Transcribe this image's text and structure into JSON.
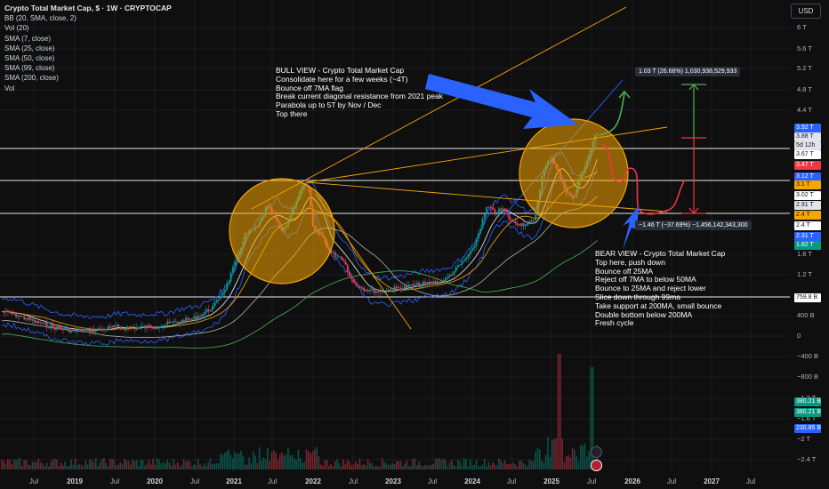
{
  "header": {
    "symbol_title": "Crypto Total Market Cap, $ · 1W · CRYPTOCAP",
    "indicators": [
      "BB (20, SMA, close, 2)",
      "Vol (20)",
      "SMA (7, close)",
      "SMA (25, close)",
      "SMA (50, close)",
      "SMA (99, close)",
      "SMA (200, close)",
      "Vol"
    ],
    "currency": "USD"
  },
  "annotations": {
    "bull": [
      "BULL VIEW - Crypto Total Market Cap",
      "Consolidate here for a few weeks (~4T)",
      "Bounce off 7MA flag",
      "Break current diagonal resistance from 2021 peak",
      "Parabola up to 5T by Nov / Dec",
      "Top there"
    ],
    "bear": [
      "BEAR VIEW - Crypto Total Market Cap",
      "Top here, push down",
      "Bounce off 25MA",
      "Reject off 7MA to below 50MA",
      "Bounce to 25MA and reject lower",
      "Slice down through 99ma",
      "Take support at 200MA, small bounce",
      "Double bottom below 200MA",
      "Fresh cycle"
    ],
    "measure_up": "1.03 T (26.66%) 1,030,938,529,933",
    "measure_down": "−1.46 T (−37.69%) −1,456,142,343,300"
  },
  "colors": {
    "background": "#0f0f10",
    "up": "#089981",
    "down": "#f23645",
    "bb": "#2962ff",
    "sma7": "#2962ff",
    "sma25": "#f0f0f0",
    "sma50": "#f7a600",
    "sma99": "#b0b0b0",
    "sma200": "#4caf50",
    "trendline": "#f7a600",
    "arrow": "#2962ff",
    "bull_path": "#4caf50",
    "bear_path": "#f23645",
    "circle": "#f7a600"
  },
  "chart_data": {
    "type": "candlestick",
    "timeframe": "1W",
    "y_axis_labels": [
      "6 T",
      "5.6 T",
      "5.2 T",
      "4.8 T",
      "4.4 T",
      "1.6 T",
      "1.2 T",
      "400 B",
      "0",
      "−400 B",
      "−800 B",
      "−1.2 T",
      "−1.6 T",
      "−2 T",
      "−2.4 T"
    ],
    "x_axis_labels": [
      {
        "label": "Jul",
        "year": false
      },
      {
        "label": "2019",
        "year": true
      },
      {
        "label": "Jul",
        "year": false
      },
      {
        "label": "2020",
        "year": true
      },
      {
        "label": "Jul",
        "year": false
      },
      {
        "label": "2021",
        "year": true
      },
      {
        "label": "Jul",
        "year": false
      },
      {
        "label": "2022",
        "year": true
      },
      {
        "label": "Jul",
        "year": false
      },
      {
        "label": "2023",
        "year": true
      },
      {
        "label": "Jul",
        "year": false
      },
      {
        "label": "2024",
        "year": true
      },
      {
        "label": "Jul",
        "year": false
      },
      {
        "label": "2025",
        "year": true
      },
      {
        "label": "Jul",
        "year": false
      },
      {
        "label": "2026",
        "year": true
      },
      {
        "label": "Jul",
        "year": false
      },
      {
        "label": "2027",
        "year": true
      },
      {
        "label": "Jul",
        "year": false
      }
    ],
    "price_scale_labels": [
      {
        "text": "3.92 T",
        "bg": "#2962ff",
        "fg": "#ffffff"
      },
      {
        "text": "3.88 T",
        "bg": "#e0e3eb",
        "fg": "#131722"
      },
      {
        "text": "5d 12h",
        "bg": "#e0e3eb",
        "fg": "#131722"
      },
      {
        "text": "3.67 T",
        "bg": "#ffffff",
        "fg": "#131722"
      },
      {
        "text": "3.47 T",
        "bg": "#f23645",
        "fg": "#ffffff"
      },
      {
        "text": "3.12 T",
        "bg": "#2962ff",
        "fg": "#ffffff"
      },
      {
        "text": "3.1 T",
        "bg": "#f7a600",
        "fg": "#131722"
      },
      {
        "text": "3.02 T",
        "bg": "#ffffff",
        "fg": "#131722"
      },
      {
        "text": "2.91 T",
        "bg": "#e0e3eb",
        "fg": "#131722"
      },
      {
        "text": "2.4 T",
        "bg": "#f7a600",
        "fg": "#131722"
      },
      {
        "text": "2.4 T",
        "bg": "#ffffff",
        "fg": "#131722"
      },
      {
        "text": "2.31 T",
        "bg": "#2962ff",
        "fg": "#ffffff"
      },
      {
        "text": "1.82 T",
        "bg": "#089981",
        "fg": "#ffffff"
      },
      {
        "text": "759.8 B",
        "bg": "#ffffff",
        "fg": "#131722"
      },
      {
        "text": "380.21 B",
        "bg": "#089981",
        "fg": "#ffffff"
      },
      {
        "text": "380.21 B",
        "bg": "#089981",
        "fg": "#ffffff"
      },
      {
        "text": "230.85 B",
        "bg": "#2962ff",
        "fg": "#ffffff"
      }
    ]
  }
}
